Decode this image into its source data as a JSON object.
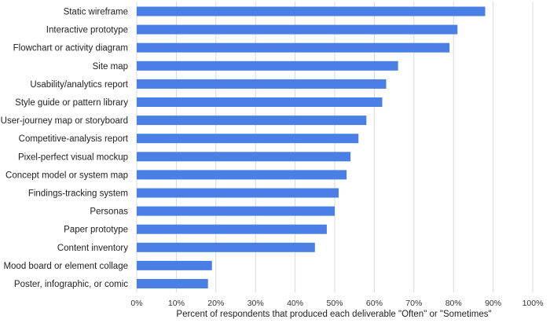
{
  "chart_data": {
    "type": "bar",
    "orientation": "horizontal",
    "categories": [
      "Static wireframe",
      "Interactive prototype",
      "Flowchart or activity diagram",
      "Site map",
      "Usability/analytics report",
      "Style guide or pattern library",
      "User-journey map or storyboard",
      "Competitive-analysis report",
      "Pixel-perfect visual mockup",
      "Concept model or system map",
      "Findings-tracking system",
      "Personas",
      "Paper prototype",
      "Content inventory",
      "Mood board or element collage",
      "Poster, infographic, or comic"
    ],
    "values": [
      88,
      81,
      79,
      66,
      63,
      62,
      58,
      56,
      54,
      53,
      51,
      50,
      48,
      45,
      19,
      18
    ],
    "xlabel": "Percent of respondents that produced each deliverable \"Often\" or \"Sometimes\"",
    "ylabel": "",
    "xlim": [
      0,
      100
    ],
    "x_ticks": [
      "0%",
      "10%",
      "20%",
      "30%",
      "40%",
      "50%",
      "60%",
      "70%",
      "80%",
      "90%",
      "100%"
    ],
    "grid": "vertical",
    "legend": "none",
    "bar_color": "#4A7FE5",
    "grid_color": "#D9D9D9"
  }
}
